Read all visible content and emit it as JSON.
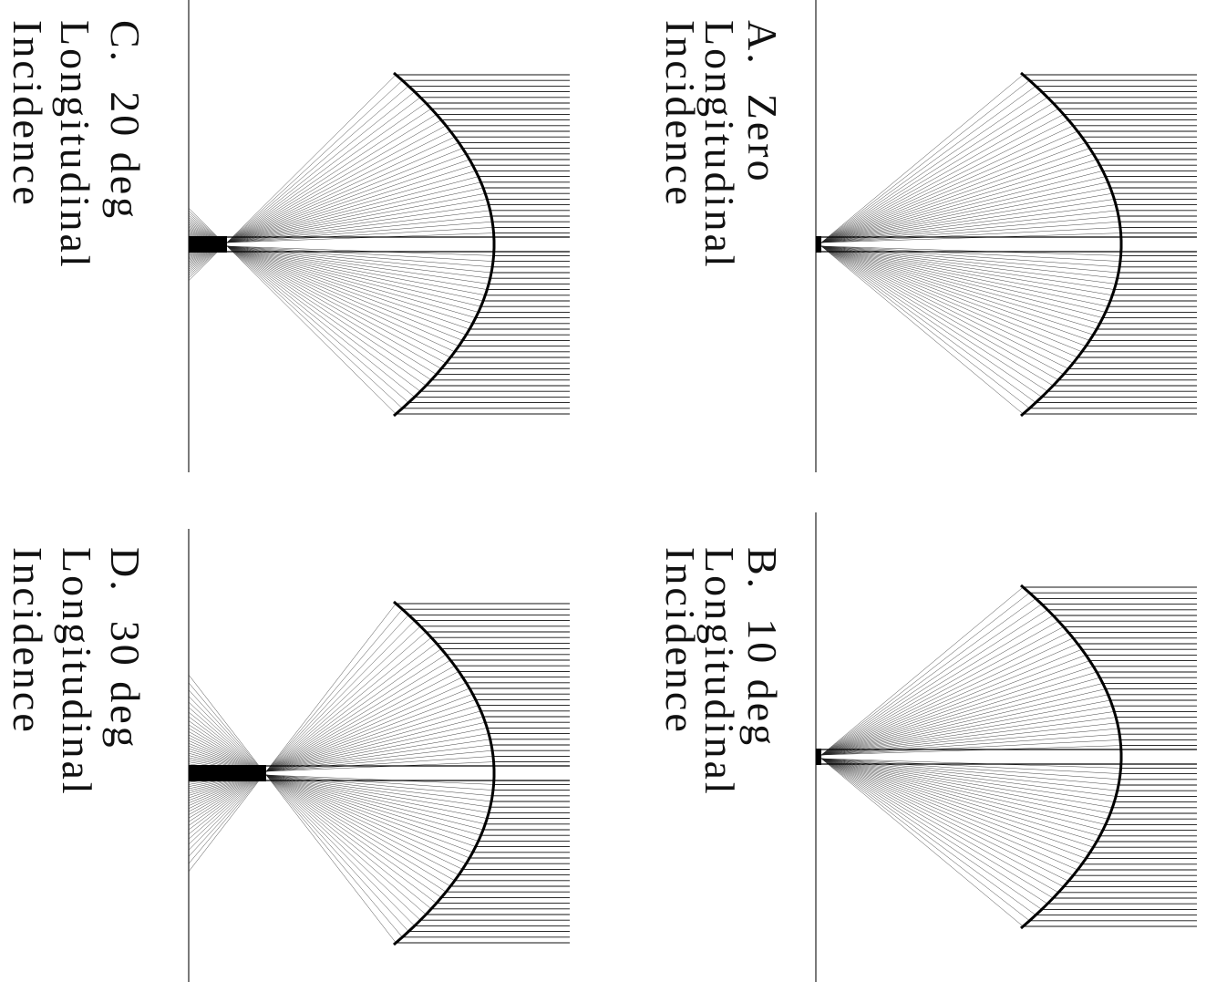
{
  "panels": [
    {
      "label": "A.",
      "title": "Zero",
      "lines": [
        "Longitudinal",
        "Incidence"
      ]
    },
    {
      "label": "B.",
      "title": "10 deg",
      "lines": [
        "Longitudinal",
        "Incidence"
      ]
    },
    {
      "label": "C.",
      "title": "20 deg",
      "lines": [
        "Longitudinal",
        "Incidence"
      ]
    },
    {
      "label": "D.",
      "title": "30 deg",
      "lines": [
        "Longitudinal",
        "Incidence"
      ]
    }
  ]
}
